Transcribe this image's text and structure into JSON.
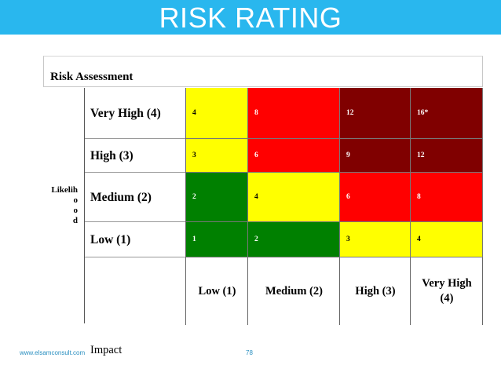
{
  "slide": {
    "title": "RISK RATING",
    "header_color": "#29b7ee",
    "assessment_label": "Risk Assessment",
    "likelihood_label": [
      "Likelih",
      "o",
      "o",
      "d"
    ],
    "impact_label": "Impact",
    "website": "www.elsamconsult.com",
    "page_number": "78"
  },
  "matrix": {
    "rows": [
      {
        "label": "Very High (4)",
        "cells": [
          {
            "value": "4",
            "level": "medium"
          },
          {
            "value": "8",
            "level": "high"
          },
          {
            "value": "12",
            "level": "extreme"
          },
          {
            "value": "16*",
            "level": "extreme"
          }
        ]
      },
      {
        "label": "High (3)",
        "cells": [
          {
            "value": "3",
            "level": "medium"
          },
          {
            "value": "6",
            "level": "high"
          },
          {
            "value": "9",
            "level": "extreme"
          },
          {
            "value": "12",
            "level": "extreme"
          }
        ]
      },
      {
        "label": "Medium (2)",
        "cells": [
          {
            "value": "2",
            "level": "low"
          },
          {
            "value": "4",
            "level": "medium"
          },
          {
            "value": "6",
            "level": "high"
          },
          {
            "value": "8",
            "level": "high"
          }
        ]
      },
      {
        "label": "Low (1)",
        "cells": [
          {
            "value": "1",
            "level": "low"
          },
          {
            "value": "2",
            "level": "low"
          },
          {
            "value": "3",
            "level": "medium"
          },
          {
            "value": "4",
            "level": "medium"
          }
        ]
      }
    ],
    "columns": [
      "Low (1)",
      "Medium (2)",
      "High (3)",
      "Very High (4)"
    ],
    "level_colors": {
      "low": "#008000",
      "medium": "#ffff00",
      "high": "#ff0000",
      "extreme": "#800000"
    },
    "level_text_colors": {
      "low": "#ffffff",
      "medium": "#000000",
      "high": "#ffffff",
      "extreme": "#ffffff"
    }
  }
}
